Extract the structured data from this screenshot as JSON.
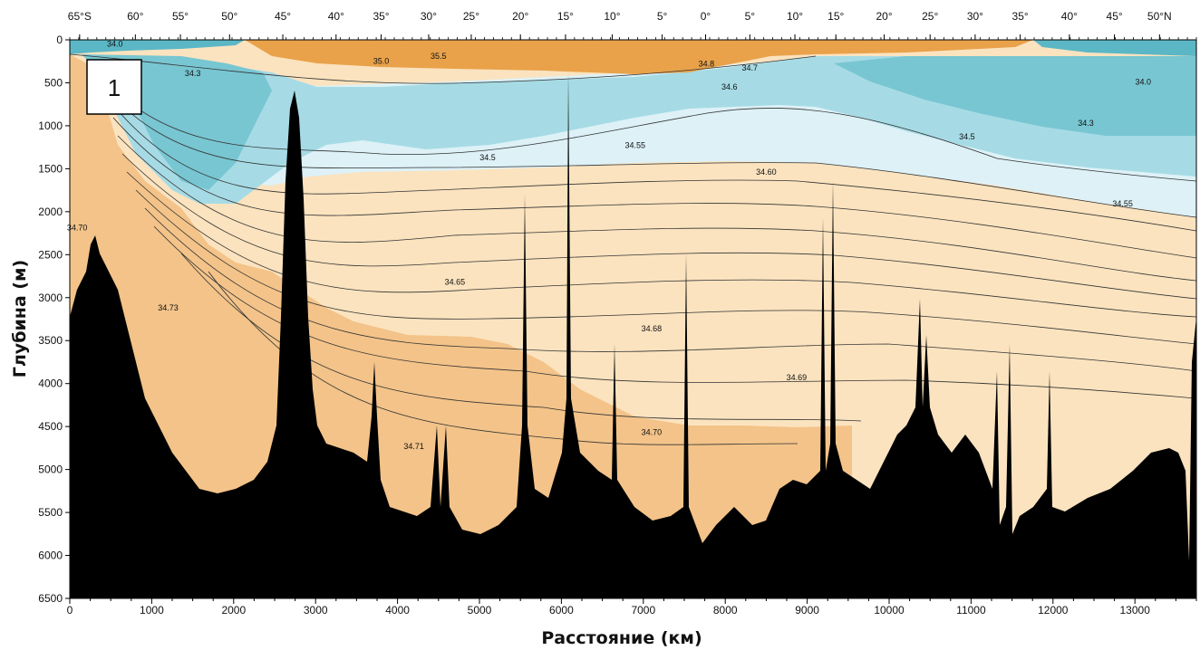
{
  "panel_label": "1",
  "chart_data": {
    "type": "contour_section",
    "xlabel": "Расстояние (км)",
    "ylabel": "Глубина (м)",
    "xlim": [
      0,
      13750
    ],
    "ylim": [
      6500,
      0
    ],
    "x_ticks": [
      0,
      1000,
      2000,
      3000,
      4000,
      5000,
      6000,
      7000,
      8000,
      9000,
      10000,
      11000,
      12000,
      13000
    ],
    "y_ticks": [
      0,
      500,
      1000,
      1500,
      2000,
      2500,
      3000,
      3500,
      4000,
      4500,
      5000,
      5500,
      6000,
      6500
    ],
    "latitude_ticks": [
      {
        "label": "65°S",
        "km": 120
      },
      {
        "label": "60°",
        "km": 800
      },
      {
        "label": "55°",
        "km": 1350
      },
      {
        "label": "50°",
        "km": 1950
      },
      {
        "label": "45°",
        "km": 2600
      },
      {
        "label": "40°",
        "km": 3250
      },
      {
        "label": "35°",
        "km": 3800
      },
      {
        "label": "30°",
        "km": 4380
      },
      {
        "label": "25°",
        "km": 4900
      },
      {
        "label": "20°",
        "km": 5500
      },
      {
        "label": "15°",
        "km": 6050
      },
      {
        "label": "10°",
        "km": 6620
      },
      {
        "label": "5°",
        "km": 7230
      },
      {
        "label": "0°",
        "km": 7760
      },
      {
        "label": "5°",
        "km": 8300
      },
      {
        "label": "10°",
        "km": 8850
      },
      {
        "label": "15°",
        "km": 9350
      },
      {
        "label": "20°",
        "km": 9940
      },
      {
        "label": "25°",
        "km": 10500
      },
      {
        "label": "30°",
        "km": 11050
      },
      {
        "label": "35°",
        "km": 11600
      },
      {
        "label": "40°",
        "km": 12200
      },
      {
        "label": "45°",
        "km": 12750
      },
      {
        "label": "50°N",
        "km": 13300
      }
    ],
    "contour_labels": [
      {
        "text": "34.0",
        "km": 550,
        "depth": 80
      },
      {
        "text": "34.3",
        "km": 1500,
        "depth": 420
      },
      {
        "text": "35.0",
        "km": 3800,
        "depth": 280
      },
      {
        "text": "35.5",
        "km": 4500,
        "depth": 220
      },
      {
        "text": "34.8",
        "km": 7770,
        "depth": 310
      },
      {
        "text": "34.7",
        "km": 8300,
        "depth": 360
      },
      {
        "text": "34.6",
        "km": 8050,
        "depth": 580
      },
      {
        "text": "34.55",
        "km": 6900,
        "depth": 1260
      },
      {
        "text": "34.5",
        "km": 5100,
        "depth": 1400
      },
      {
        "text": "34.60",
        "km": 8500,
        "depth": 1570
      },
      {
        "text": "34.5",
        "km": 10950,
        "depth": 1160
      },
      {
        "text": "34.3",
        "km": 12400,
        "depth": 1000
      },
      {
        "text": "34.0",
        "km": 13100,
        "depth": 520
      },
      {
        "text": "34.55",
        "km": 12850,
        "depth": 1940
      },
      {
        "text": "34.70",
        "km": 90,
        "depth": 2220
      },
      {
        "text": "34.73",
        "km": 1200,
        "depth": 3150
      },
      {
        "text": "34.65",
        "km": 4700,
        "depth": 2850
      },
      {
        "text": "34.68",
        "km": 7100,
        "depth": 3390
      },
      {
        "text": "34.69",
        "km": 8870,
        "depth": 3960
      },
      {
        "text": "34.70",
        "km": 7100,
        "depth": 4600
      },
      {
        "text": "34.71",
        "km": 4200,
        "depth": 4760
      }
    ]
  },
  "colors": {
    "deep_orange": "#f3c389",
    "pale_orange": "#fbe3bf",
    "surface_orange": "#e9a24a",
    "light_blue": "#ddf1f7",
    "mid_blue": "#a6dbe5",
    "deep_blue": "#78c6d2",
    "seafloor": "#000000"
  }
}
